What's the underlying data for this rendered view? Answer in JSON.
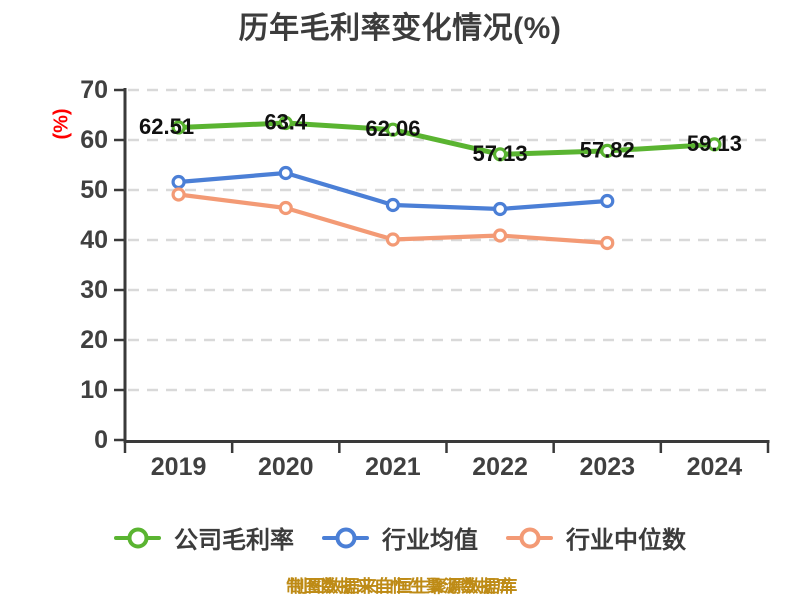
{
  "chart_data": {
    "type": "line",
    "title": "历年毛利率变化情况(%)",
    "ylabel": "(%)",
    "footer": "制图数据来自恒生聚源数据库",
    "categories": [
      "2019",
      "2020",
      "2021",
      "2022",
      "2023",
      "2024"
    ],
    "yticks": [
      0,
      10,
      20,
      30,
      40,
      50,
      60,
      70
    ],
    "ylim": [
      0,
      70
    ],
    "grid": "horizontal-dashed",
    "legend_position": "bottom",
    "series": [
      {
        "name": "公司毛利率",
        "color": "#5AB431",
        "marker": "circle-white-fill",
        "values": [
          62.51,
          63.4,
          62.06,
          57.13,
          57.82,
          59.13
        ],
        "data_labels": [
          "62.51",
          "63.4",
          "62.06",
          "57.13",
          "57.82",
          "59.13"
        ]
      },
      {
        "name": "行业均值",
        "color": "#4B7FD6",
        "marker": "circle-white-fill",
        "values": [
          51.6,
          53.4,
          47.0,
          46.2,
          47.8
        ],
        "data_labels": null
      },
      {
        "name": "行业中位数",
        "color": "#F39A75",
        "marker": "circle-white-fill",
        "values": [
          49.1,
          46.4,
          40.1,
          40.9,
          39.4
        ],
        "data_labels": null
      }
    ],
    "colors": {
      "background": "#FFFFFF",
      "axis": "#3A3A3A",
      "grid": "#D9D9D9",
      "title": "#3C3C3C",
      "tick_label": "#404040",
      "ylabel": "#FF0000",
      "data_label": "#111111",
      "legend_text": "#3C3C3C",
      "footer": "#BE8B16"
    }
  }
}
